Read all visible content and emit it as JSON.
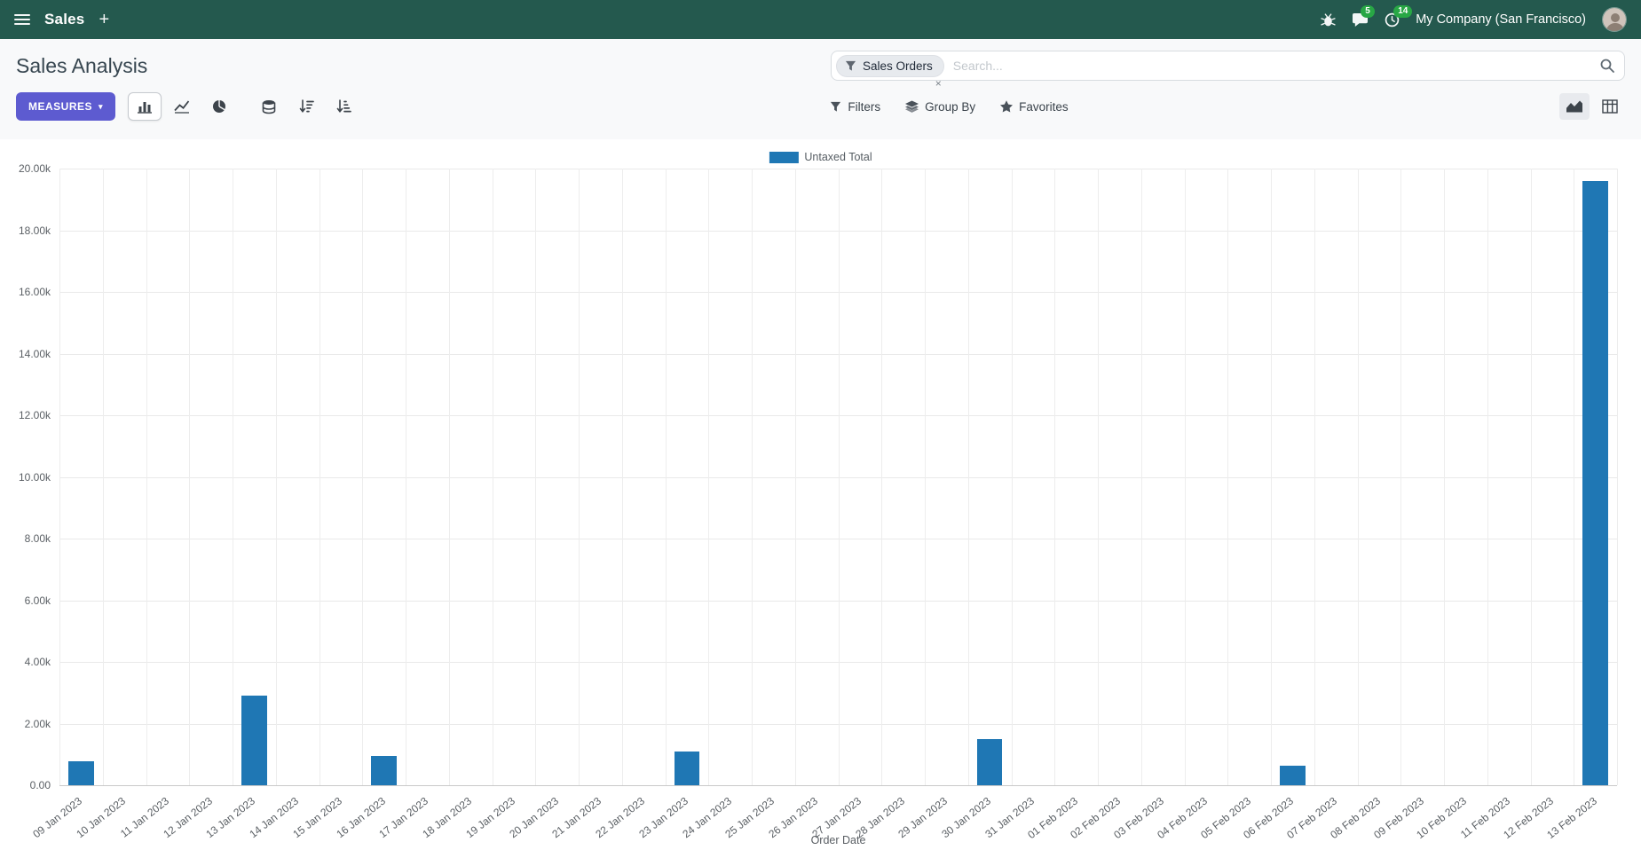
{
  "navbar": {
    "app_name": "Sales",
    "company": "My Company (San Francisco)",
    "messages_badge": "5",
    "activities_badge": "14"
  },
  "breadcrumb": {
    "title": "Sales Analysis"
  },
  "search": {
    "facet_label": "Sales Orders",
    "placeholder": "Search..."
  },
  "toolbar": {
    "measures_label": "MEASURES",
    "filters_label": "Filters",
    "group_by_label": "Group By",
    "favorites_label": "Favorites"
  },
  "icons": {
    "plus": "+",
    "caret_down": "▾",
    "close": "×"
  },
  "colors": {
    "navbar_bg": "#24594e",
    "primary_button": "#5d5bd0",
    "bar_series": "#1f77b4",
    "badge_green": "#28a745"
  },
  "chart_data": {
    "type": "bar",
    "title": "",
    "xlabel": "Order Date",
    "ylabel": "",
    "legend_position": "top-center",
    "grid": true,
    "ylim": [
      0,
      20000
    ],
    "ytick_step": 2000,
    "ytick_labels": [
      "0.00",
      "2.00k",
      "4.00k",
      "6.00k",
      "8.00k",
      "10.00k",
      "12.00k",
      "14.00k",
      "16.00k",
      "18.00k",
      "20.00k"
    ],
    "categories": [
      "09 Jan 2023",
      "10 Jan 2023",
      "11 Jan 2023",
      "12 Jan 2023",
      "13 Jan 2023",
      "14 Jan 2023",
      "15 Jan 2023",
      "16 Jan 2023",
      "17 Jan 2023",
      "18 Jan 2023",
      "19 Jan 2023",
      "20 Jan 2023",
      "21 Jan 2023",
      "22 Jan 2023",
      "23 Jan 2023",
      "24 Jan 2023",
      "25 Jan 2023",
      "26 Jan 2023",
      "27 Jan 2023",
      "28 Jan 2023",
      "29 Jan 2023",
      "30 Jan 2023",
      "31 Jan 2023",
      "01 Feb 2023",
      "02 Feb 2023",
      "03 Feb 2023",
      "04 Feb 2023",
      "05 Feb 2023",
      "06 Feb 2023",
      "07 Feb 2023",
      "08 Feb 2023",
      "09 Feb 2023",
      "10 Feb 2023",
      "11 Feb 2023",
      "12 Feb 2023",
      "13 Feb 2023"
    ],
    "series": [
      {
        "name": "Untaxed Total",
        "color": "#1f77b4",
        "values": [
          780,
          0,
          0,
          0,
          2900,
          0,
          0,
          950,
          0,
          0,
          0,
          0,
          0,
          0,
          1080,
          0,
          0,
          0,
          0,
          0,
          0,
          1500,
          0,
          0,
          0,
          0,
          0,
          0,
          620,
          0,
          0,
          0,
          0,
          0,
          0,
          19600
        ]
      }
    ]
  }
}
